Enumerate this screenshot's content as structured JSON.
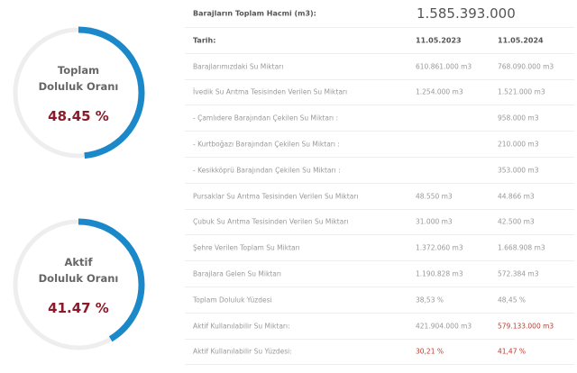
{
  "gauges": [
    {
      "title_line1": "Toplam",
      "title_line2": "Doluluk Oranı",
      "value": "48.45 %",
      "percent": 48.45
    },
    {
      "title_line1": "Aktif",
      "title_line2": "Doluluk Oranı",
      "value": "41.47 %",
      "percent": 41.47
    }
  ],
  "colors": {
    "gauge_fill": "#1a88c9",
    "gauge_track": "#eeeeee",
    "highlight": "#c0392b"
  },
  "table": {
    "total_label": "Barajların Toplam Hacmi (m3):",
    "total_value": "1.585.393.000",
    "date_label": "Tarih:",
    "date1": "11.05.2023",
    "date2": "11.05.2024",
    "rows": [
      {
        "label": "Barajlarımızdaki Su Miktarı",
        "v1": "610.861.000 m3",
        "v2": "768.090.000 m3"
      },
      {
        "label": "İvedik Su Arıtma Tesisinden Verilen Su Miktarı",
        "v1": "1.254.000 m3",
        "v2": "1.521.000 m3"
      },
      {
        "label": "- Çamlıdere Barajından Çekilen Su Miktarı :",
        "v1": "",
        "v2": "958.000 m3"
      },
      {
        "label": "- Kurtboğazı Barajından Çekilen Su Miktarı :",
        "v1": "",
        "v2": "210.000 m3"
      },
      {
        "label": "- Kesikköprü Barajından Çekilen Su Miktarı :",
        "v1": "",
        "v2": "353.000 m3"
      },
      {
        "label": "Pursaklar Su Arıtma Tesisinden Verilen Su Miktarı",
        "v1": "48.550 m3",
        "v2": "44.866 m3"
      },
      {
        "label": "Çubuk Su Arıtma Tesisinden Verilen Su Miktarı",
        "v1": "31.000 m3",
        "v2": "42.500 m3"
      },
      {
        "label": "Şehre Verilen Toplam Su Miktarı",
        "v1": "1.372.060 m3",
        "v2": "1.668.908 m3"
      },
      {
        "label": "Barajlara Gelen Su Miktarı",
        "v1": "1.190.828 m3",
        "v2": "572.384 m3"
      },
      {
        "label": "Toplam Doluluk Yüzdesi",
        "v1": "38,53 %",
        "v2": "48,45 %"
      },
      {
        "label": "Aktif Kullanılabilir Su Miktarı:",
        "v1": "421.904.000 m3",
        "v2": "579.133.000 m3",
        "v2_red": true
      },
      {
        "label": "Aktif Kullanılabilir Su Yüzdesi:",
        "v1": "30,21 %",
        "v2": "41,47 %",
        "v1_red": true,
        "v2_red": true
      }
    ]
  }
}
